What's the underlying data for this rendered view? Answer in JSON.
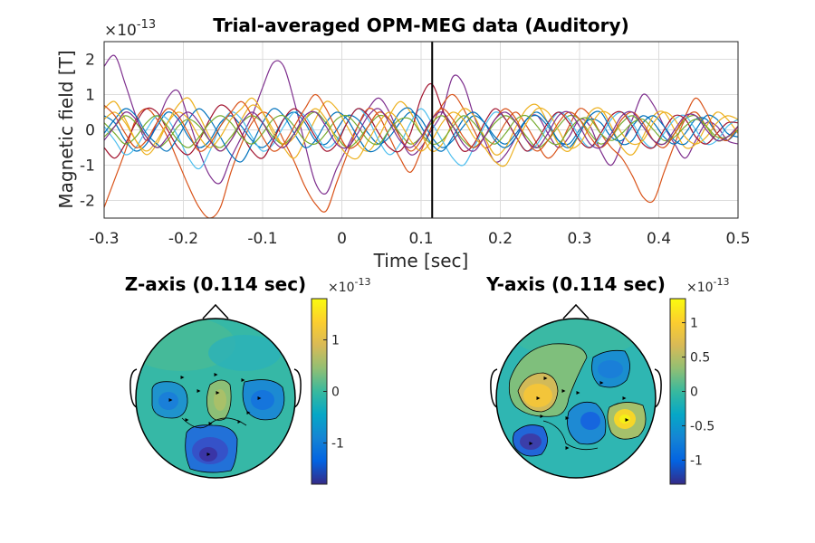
{
  "chart_data": [
    {
      "type": "line",
      "title": "Trial-averaged OPM-MEG data (Auditory)",
      "xlabel": "Time [sec]",
      "ylabel": "Magnetic field [T]",
      "exponent": "×10",
      "exponent_power": "-13",
      "xlim": [
        -0.3,
        0.5
      ],
      "ylim": [
        -2.5,
        2.5
      ],
      "x_ticks": [
        "-0.3",
        "-0.2",
        "-0.1",
        "0",
        "0.1",
        "0.2",
        "0.3",
        "0.4",
        "0.5"
      ],
      "y_ticks": [
        "2",
        "1",
        "0",
        "-1",
        "-2"
      ],
      "grid": true,
      "marker_time": 0.114,
      "series_colors": [
        "#0072BD",
        "#D95319",
        "#EDB120",
        "#7E2F8E",
        "#77AC30",
        "#4DBEEE",
        "#A2142F"
      ],
      "series": [
        {
          "color_index": 3,
          "values": [
            1.8,
            2.1,
            1.3,
            0.4,
            -0.3,
            0.2,
            0.9,
            1.1,
            0.3,
            -0.6,
            -1.3,
            -1.5,
            -0.8,
            -0.2,
            0.4,
            1.2,
            1.9,
            1.8,
            0.8,
            -0.4,
            -1.5,
            -1.8,
            -1.1,
            -0.5,
            0.1,
            0.6,
            0.9,
            0.5,
            -0.2,
            -0.7,
            -0.5,
            0.0,
            0.5,
            1.5,
            1.3,
            0.4,
            -0.3,
            -0.9,
            -0.7,
            -0.2,
            0.3,
            0.4,
            -0.1,
            -0.5,
            -0.2,
            0.3,
            0.1,
            -0.6,
            -1.0,
            -0.4,
            0.3,
            1.0,
            0.7,
            0.1,
            -0.4,
            -0.8,
            -0.3,
            0.2,
            0.1,
            -0.3,
            -0.4
          ]
        },
        {
          "color_index": 1,
          "values": [
            -2.2,
            -1.4,
            -0.6,
            0.3,
            0.6,
            0.3,
            -0.2,
            -0.9,
            -1.6,
            -2.2,
            -2.5,
            -2.2,
            -1.2,
            -0.4,
            0.2,
            0.5,
            0.3,
            -0.3,
            -0.9,
            -1.6,
            -2.1,
            -2.3,
            -1.5,
            -0.7,
            0.1,
            0.6,
            0.4,
            -0.2,
            -0.8,
            -1.2,
            -0.6,
            0.1,
            0.7,
            1.0,
            0.6,
            0.0,
            -0.5,
            -0.3,
            0.2,
            0.5,
            0.1,
            -0.4,
            -0.8,
            -0.5,
            0.1,
            0.6,
            0.4,
            -0.1,
            -0.5,
            -0.8,
            -1.3,
            -1.9,
            -2.0,
            -1.2,
            -0.4,
            0.3,
            0.5,
            0.1,
            -0.3,
            -0.2,
            0.1
          ]
        },
        {
          "color_index": 0,
          "values": [
            0.4,
            0.2,
            -0.3,
            -0.6,
            -0.4,
            0.1,
            0.5,
            0.3,
            -0.2,
            -0.5,
            -0.3,
            0.2,
            0.4,
            0.1,
            -0.3,
            -0.5,
            -0.2,
            0.3,
            0.5,
            0.2,
            -0.3,
            -0.4,
            0.0,
            0.4,
            0.3,
            -0.1,
            -0.4,
            -0.2,
            0.2,
            0.5,
            0.3,
            -0.2,
            -0.5,
            -0.3,
            0.1,
            0.4,
            0.2,
            -0.2,
            -0.4,
            -0.1,
            0.3,
            0.4,
            0.1,
            -0.3,
            -0.4,
            0.0,
            0.3,
            0.2,
            -0.2,
            -0.3,
            0.1,
            0.4,
            0.2,
            -0.2,
            -0.4,
            -0.1,
            0.3,
            0.3,
            -0.1,
            -0.3,
            0.0
          ]
        },
        {
          "color_index": 2,
          "values": [
            0.6,
            0.8,
            0.3,
            -0.3,
            -0.7,
            -0.4,
            0.2,
            0.7,
            0.9,
            0.4,
            -0.2,
            -0.6,
            -0.3,
            0.3,
            0.7,
            0.5,
            0.0,
            -0.5,
            -0.8,
            -0.3,
            0.3,
            0.8,
            0.6,
            0.1,
            -0.4,
            -0.6,
            -0.2,
            0.4,
            0.8,
            0.5,
            -0.1,
            -0.6,
            -0.4,
            0.2,
            0.6,
            0.4,
            -0.2,
            -0.7,
            -0.5,
            0.1,
            0.6,
            0.7,
            0.2,
            -0.4,
            -0.6,
            -0.1,
            0.5,
            0.6,
            0.1,
            -0.5,
            -0.7,
            -0.2,
            0.4,
            0.5,
            0.0,
            -0.5,
            -0.4,
            0.1,
            0.5,
            0.3,
            -0.1
          ]
        },
        {
          "color_index": 4,
          "values": [
            -0.2,
            0.1,
            0.4,
            0.2,
            -0.2,
            -0.5,
            -0.3,
            0.1,
            0.3,
            0.1,
            -0.3,
            -0.5,
            -0.2,
            0.2,
            0.4,
            0.2,
            -0.2,
            -0.4,
            -0.1,
            0.3,
            0.5,
            0.2,
            -0.2,
            -0.5,
            -0.3,
            0.1,
            0.4,
            0.3,
            -0.1,
            -0.4,
            -0.2,
            0.2,
            0.4,
            0.1,
            -0.3,
            -0.5,
            -0.2,
            0.2,
            0.4,
            0.2,
            -0.2,
            -0.5,
            -0.3,
            0.1,
            0.4,
            0.3,
            -0.1,
            -0.4,
            -0.2,
            0.2,
            0.4,
            0.1,
            -0.3,
            -0.4,
            -0.1,
            0.3,
            0.4,
            0.1,
            -0.3,
            -0.2,
            0.1
          ]
        },
        {
          "color_index": 5,
          "values": [
            0.1,
            -0.3,
            -0.7,
            -0.5,
            0.0,
            0.4,
            0.3,
            -0.2,
            -0.8,
            -1.1,
            -0.6,
            0.1,
            0.5,
            0.3,
            -0.2,
            -0.6,
            -0.4,
            0.1,
            0.5,
            0.4,
            -0.1,
            -0.5,
            -0.3,
            0.2,
            0.6,
            0.3,
            -0.3,
            -0.7,
            -0.4,
            0.2,
            0.6,
            0.2,
            -0.3,
            -0.8,
            -1.0,
            -0.5,
            0.1,
            0.5,
            0.3,
            -0.2,
            -0.6,
            -0.4,
            0.1,
            0.5,
            0.3,
            -0.2,
            -0.5,
            -0.2,
            0.3,
            0.5,
            0.2,
            -0.3,
            -0.5,
            -0.1,
            0.3,
            0.4,
            0.0,
            -0.4,
            -0.3,
            0.1,
            0.3
          ]
        },
        {
          "color_index": 6,
          "values": [
            -0.5,
            -0.8,
            -0.4,
            0.2,
            0.6,
            0.5,
            0.0,
            -0.5,
            -0.7,
            -0.3,
            0.3,
            0.7,
            0.5,
            -0.1,
            -0.6,
            -0.8,
            -0.3,
            0.3,
            0.6,
            0.3,
            -0.2,
            -0.6,
            -0.4,
            0.2,
            0.6,
            0.4,
            -0.1,
            -0.5,
            -0.6,
            -0.1,
            0.9,
            1.3,
            0.6,
            -0.1,
            -0.6,
            -0.4,
            0.2,
            0.6,
            0.3,
            -0.2,
            -0.6,
            -0.3,
            0.2,
            0.5,
            0.2,
            -0.3,
            -0.5,
            -0.1,
            0.4,
            0.5,
            0.1,
            -0.4,
            -0.5,
            0.0,
            0.4,
            0.3,
            -0.2,
            -0.4,
            -0.1,
            0.2,
            0.2
          ]
        },
        {
          "color_index": 0,
          "values": [
            -0.1,
            0.3,
            0.6,
            0.4,
            -0.1,
            -0.4,
            -0.6,
            -0.2,
            0.3,
            0.6,
            0.3,
            -0.2,
            -0.7,
            -0.9,
            -0.4,
            0.2,
            0.6,
            0.4,
            -0.1,
            -0.5,
            -0.3,
            0.2,
            0.5,
            0.3,
            -0.2,
            -0.6,
            -0.5,
            0.0,
            0.5,
            0.6,
            0.1,
            -0.4,
            -0.6,
            -0.2,
            0.3,
            0.5,
            0.2,
            -0.3,
            -0.5,
            -0.2,
            0.3,
            0.5,
            0.2,
            -0.3,
            -0.5,
            -0.1,
            0.4,
            0.5,
            0.0,
            -0.4,
            -0.3,
            0.2,
            0.4,
            0.1,
            -0.3,
            -0.4,
            0.0,
            0.4,
            0.3,
            -0.1,
            -0.2
          ]
        },
        {
          "color_index": 2,
          "values": [
            0.3,
            0.5,
            0.2,
            -0.3,
            -0.6,
            -0.3,
            0.2,
            0.5,
            0.3,
            -0.2,
            -0.5,
            -0.2,
            0.3,
            0.6,
            0.9,
            0.5,
            -0.1,
            -0.4,
            -0.2,
            0.3,
            0.6,
            0.3,
            -0.3,
            -0.7,
            -0.8,
            -0.3,
            0.2,
            0.5,
            0.2,
            -0.3,
            -0.6,
            -0.3,
            0.2,
            0.5,
            0.3,
            -0.2,
            -0.5,
            -0.9,
            -1.0,
            -0.4,
            0.2,
            0.6,
            0.5,
            0.0,
            -0.5,
            -0.4,
            0.1,
            0.5,
            0.4,
            -0.1,
            -0.4,
            -0.3,
            0.2,
            0.5,
            0.3,
            -0.2,
            -0.4,
            -0.2,
            0.2,
            0.4,
            0.3
          ]
        },
        {
          "color_index": 4,
          "values": [
            0.2,
            -0.1,
            -0.4,
            -0.2,
            0.2,
            0.4,
            0.1,
            -0.3,
            -0.5,
            -0.2,
            0.2,
            0.4,
            0.2,
            -0.2,
            -0.4,
            -0.1,
            0.3,
            0.4,
            0.1,
            -0.3,
            -0.4,
            -0.1,
            0.3,
            0.4,
            0.1,
            -0.3,
            -0.4,
            0.0,
            0.3,
            0.3,
            -0.1,
            -0.4,
            -0.3,
            0.1,
            0.4,
            0.2,
            -0.2,
            -0.4,
            -0.1,
            0.3,
            0.4,
            0.1,
            -0.3,
            -0.4,
            0.0,
            0.3,
            0.3,
            -0.1,
            -0.3,
            -0.1,
            0.2,
            0.3,
            0.0,
            -0.3,
            -0.2,
            0.1,
            0.3,
            0.1,
            -0.2,
            -0.2,
            0.0
          ]
        },
        {
          "color_index": 1,
          "values": [
            0.7,
            0.4,
            -0.1,
            -0.5,
            -0.3,
            0.2,
            0.6,
            0.4,
            -0.1,
            -0.6,
            -0.4,
            0.1,
            0.5,
            0.8,
            0.4,
            -0.2,
            -0.6,
            -0.4,
            0.1,
            0.6,
            1.0,
            0.6,
            0.0,
            -0.5,
            -0.4,
            0.1,
            0.5,
            0.3,
            -0.2,
            -0.6,
            -0.3,
            0.3,
            0.6,
            0.3,
            -0.2,
            -0.5,
            -0.2,
            0.3,
            0.6,
            0.3,
            -0.3,
            -0.6,
            -0.3,
            0.2,
            0.5,
            0.3,
            -0.2,
            -0.5,
            -0.2,
            0.3,
            0.5,
            0.2,
            -0.3,
            -0.5,
            -0.1,
            0.4,
            0.9,
            0.5,
            -0.1,
            -0.3,
            0.1
          ]
        },
        {
          "color_index": 3,
          "values": [
            -0.3,
            0.1,
            0.5,
            0.3,
            -0.2,
            -0.5,
            -0.2,
            0.3,
            0.5,
            0.2,
            -0.3,
            -0.6,
            -0.3,
            0.2,
            0.5,
            0.2,
            -0.3,
            -0.5,
            -0.1,
            0.4,
            0.5,
            0.1,
            -0.4,
            -0.5,
            -0.1,
            0.4,
            0.6,
            0.2,
            -0.3,
            -0.5,
            -0.2,
            0.3,
            0.5,
            0.1,
            -0.4,
            -0.6,
            -0.2,
            0.3,
            0.5,
            0.2,
            -0.3,
            -0.5,
            -0.1,
            0.4,
            0.5,
            0.1,
            -0.4,
            -0.5,
            -0.1,
            0.4,
            0.5,
            0.1,
            -0.3,
            -0.4,
            0.0,
            0.4,
            0.4,
            0.0,
            -0.3,
            -0.2,
            0.1
          ]
        }
      ]
    },
    {
      "type": "heatmap",
      "title": "Z-axis (0.114 sec)",
      "colorbar_exponent": "×10",
      "colorbar_exponent_power": "-13",
      "colorbar_ticks": [
        "1",
        "0",
        "-1"
      ],
      "clim": [
        -1.8,
        1.8
      ]
    },
    {
      "type": "heatmap",
      "title": "Y-axis (0.114 sec)",
      "colorbar_exponent": "×10",
      "colorbar_exponent_power": "-13",
      "colorbar_ticks": [
        "1",
        "0.5",
        "0",
        "-0.5",
        "-1"
      ],
      "clim": [
        -1.35,
        1.35
      ]
    }
  ]
}
